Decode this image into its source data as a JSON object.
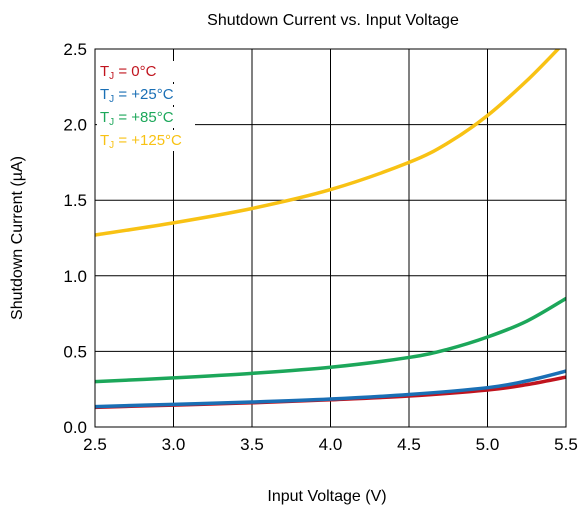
{
  "chart_data": {
    "type": "line",
    "title": "Shutdown Current vs. Input Voltage",
    "xlabel": "Input Voltage (V)",
    "ylabel": "Shutdown Current (µA)",
    "xlim": [
      2.5,
      5.5
    ],
    "ylim": [
      0.0,
      2.5
    ],
    "x_ticks": [
      "2.5",
      "3.0",
      "3.5",
      "4.0",
      "4.5",
      "5.0",
      "5.5"
    ],
    "y_ticks": [
      "0.0",
      "0.5",
      "1.0",
      "1.5",
      "2.0",
      "2.5"
    ],
    "grid": true,
    "legend_position": "top-left",
    "series": [
      {
        "name": "0°C",
        "label_prefix": "T",
        "label_sub": "J",
        "label_rest": " = 0°C",
        "color": "#c0141e",
        "x": [
          2.5,
          3.0,
          3.5,
          4.0,
          4.5,
          5.0,
          5.25,
          5.5
        ],
        "y": [
          0.13,
          0.145,
          0.16,
          0.18,
          0.205,
          0.245,
          0.28,
          0.33
        ]
      },
      {
        "name": "+25°C",
        "label_prefix": "T",
        "label_sub": "J",
        "label_rest": " = +25°C",
        "color": "#1a6fb5",
        "x": [
          2.5,
          3.0,
          3.5,
          4.0,
          4.5,
          5.0,
          5.25,
          5.5
        ],
        "y": [
          0.135,
          0.15,
          0.165,
          0.185,
          0.215,
          0.26,
          0.305,
          0.37
        ]
      },
      {
        "name": "+85°C",
        "label_prefix": "T",
        "label_sub": "J",
        "label_rest": " = +85°C",
        "color": "#1ca75a",
        "x": [
          2.5,
          3.0,
          3.5,
          4.0,
          4.5,
          4.75,
          5.0,
          5.25,
          5.5
        ],
        "y": [
          0.3,
          0.325,
          0.355,
          0.395,
          0.46,
          0.515,
          0.595,
          0.7,
          0.85
        ]
      },
      {
        "name": "+125°C",
        "label_prefix": "T",
        "label_sub": "J",
        "label_rest": " = +125°C",
        "color": "#f8c214",
        "x": [
          2.5,
          3.0,
          3.5,
          4.0,
          4.5,
          4.75,
          5.0,
          5.25,
          5.45
        ],
        "y": [
          1.27,
          1.35,
          1.445,
          1.57,
          1.75,
          1.88,
          2.06,
          2.29,
          2.5
        ]
      }
    ]
  }
}
